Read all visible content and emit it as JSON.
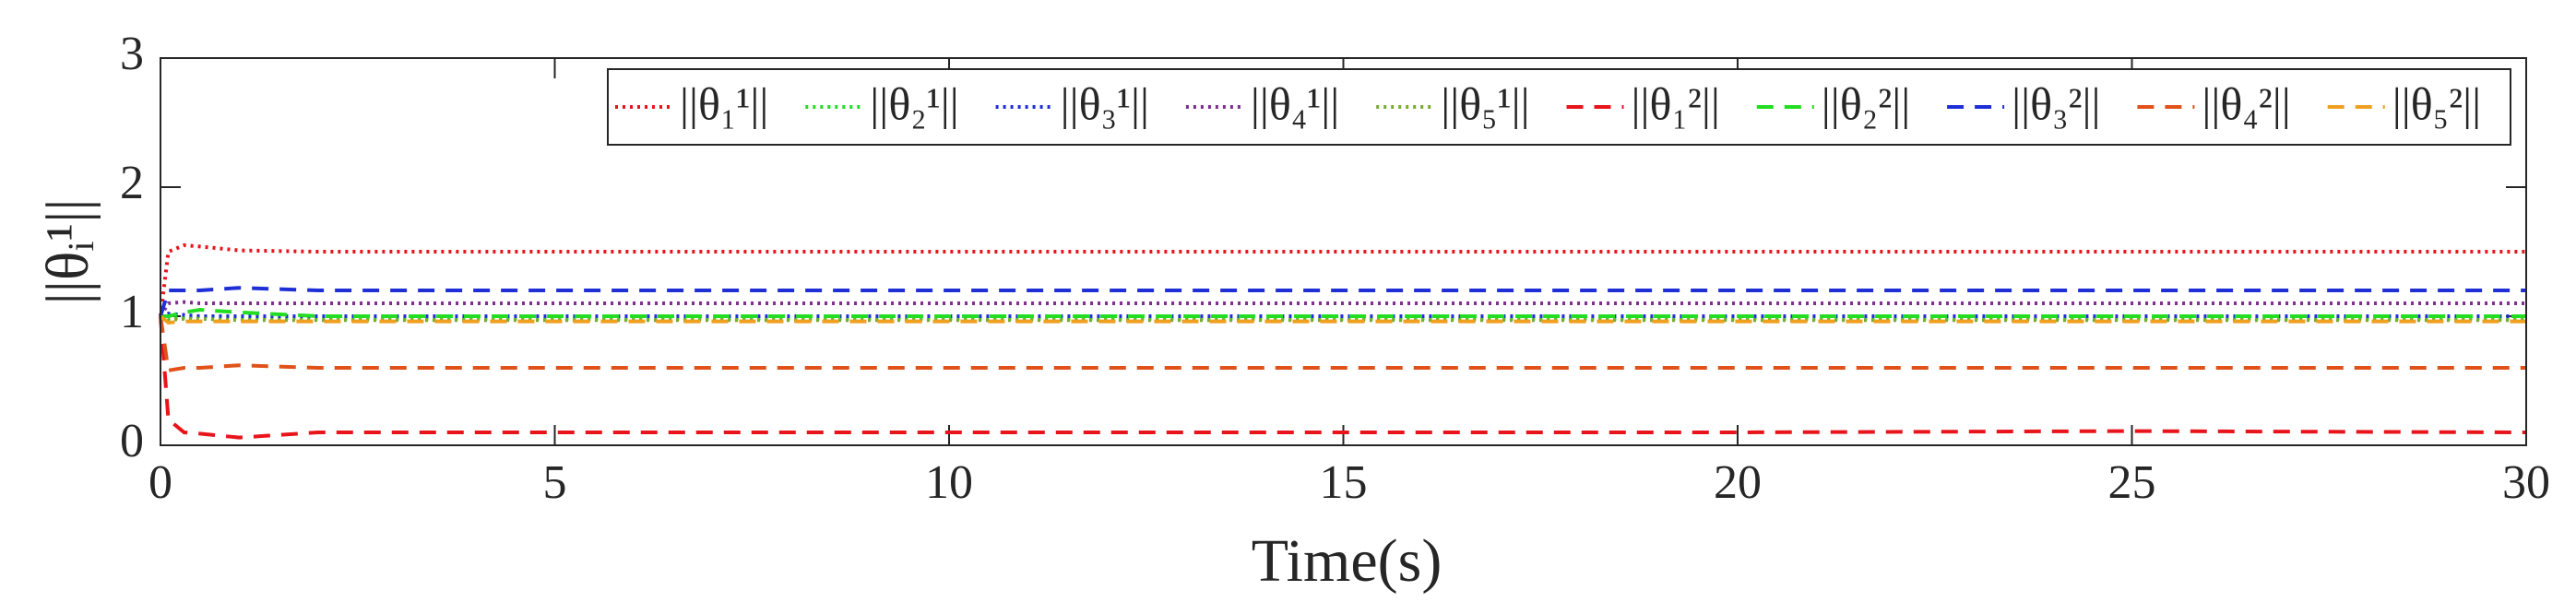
{
  "chart_data": {
    "type": "line",
    "xlabel": "Time(s)",
    "ylabel": "||θᵢ¹||",
    "x": [
      0,
      0.1,
      0.3,
      0.5,
      1,
      2,
      5,
      10,
      15,
      20,
      25,
      30
    ],
    "xlim": [
      0,
      30
    ],
    "xticks": [
      0,
      5,
      10,
      15,
      20,
      25,
      30
    ],
    "ylim": [
      0,
      3
    ],
    "yticks": [
      0,
      1,
      2,
      3
    ],
    "legend": "upper right",
    "series": [
      {
        "name": "||θ₁¹||",
        "color": "#e8141c",
        "dash": "dotted",
        "values": [
          1.0,
          1.5,
          1.55,
          1.54,
          1.51,
          1.5,
          1.5,
          1.5,
          1.5,
          1.5,
          1.5,
          1.5
        ]
      },
      {
        "name": "||θ₂¹||",
        "color": "#22dd22",
        "dash": "dotted",
        "values": [
          1.0,
          0.98,
          0.99,
          1.0,
          0.99,
          0.98,
          0.98,
          0.98,
          0.98,
          0.98,
          0.98,
          0.98
        ]
      },
      {
        "name": "||θ₃¹||",
        "color": "#1f2fd6",
        "dash": "dotted",
        "values": [
          1.0,
          1.02,
          1.01,
          1.0,
          1.0,
          1.0,
          1.0,
          1.0,
          1.0,
          1.0,
          1.0,
          1.0
        ]
      },
      {
        "name": "||θ₄¹||",
        "color": "#7e2f8e",
        "dash": "dotted",
        "values": [
          1.0,
          1.1,
          1.11,
          1.1,
          1.1,
          1.1,
          1.1,
          1.1,
          1.1,
          1.1,
          1.1,
          1.1
        ]
      },
      {
        "name": "||θ₅¹||",
        "color": "#77ac30",
        "dash": "dotted",
        "values": [
          1.0,
          0.97,
          0.98,
          0.98,
          0.97,
          0.97,
          0.97,
          0.97,
          0.97,
          0.97,
          0.97,
          0.97
        ]
      },
      {
        "name": "||θ₁²||",
        "color": "#e8141c",
        "dash": "dashed",
        "values": [
          1.0,
          0.2,
          0.1,
          0.09,
          0.06,
          0.1,
          0.1,
          0.1,
          0.1,
          0.1,
          0.11,
          0.1
        ]
      },
      {
        "name": "||θ₂²||",
        "color": "#22dd22",
        "dash": "dashed",
        "values": [
          1.0,
          1.0,
          1.03,
          1.05,
          1.03,
          1.0,
          1.0,
          1.0,
          1.0,
          1.0,
          1.0,
          1.0
        ]
      },
      {
        "name": "||θ₃²||",
        "color": "#1f2fd6",
        "dash": "dashed",
        "values": [
          1.0,
          1.2,
          1.2,
          1.2,
          1.22,
          1.2,
          1.2,
          1.2,
          1.2,
          1.2,
          1.2,
          1.2
        ]
      },
      {
        "name": "||θ₄²||",
        "color": "#e0521a",
        "dash": "dashed",
        "values": [
          1.0,
          0.58,
          0.6,
          0.6,
          0.62,
          0.6,
          0.6,
          0.6,
          0.6,
          0.6,
          0.6,
          0.6
        ]
      },
      {
        "name": "||θ₅²||",
        "color": "#f0a020",
        "dash": "dashed",
        "values": [
          1.0,
          0.95,
          0.96,
          0.96,
          0.96,
          0.96,
          0.96,
          0.96,
          0.96,
          0.96,
          0.96,
          0.96
        ]
      }
    ]
  }
}
